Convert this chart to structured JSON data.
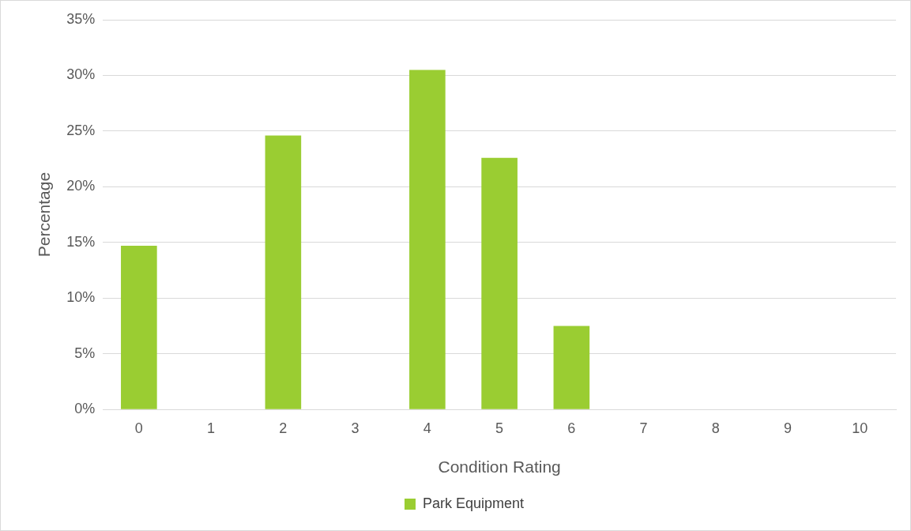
{
  "chart_data": {
    "type": "bar",
    "xlabel": "Condition Rating",
    "ylabel": "Percentage",
    "categories": [
      "0",
      "1",
      "2",
      "3",
      "4",
      "5",
      "6",
      "7",
      "8",
      "9",
      "10"
    ],
    "series": [
      {
        "name": "Park Equipment",
        "color": "#9acd32",
        "values": [
          14.7,
          0,
          24.6,
          0,
          30.5,
          22.6,
          7.5,
          0,
          0,
          0,
          0
        ]
      }
    ],
    "ylim": [
      0,
      35
    ],
    "yticks": [
      {
        "value": 0,
        "label": "0%"
      },
      {
        "value": 5,
        "label": "5%"
      },
      {
        "value": 10,
        "label": "10%"
      },
      {
        "value": 15,
        "label": "15%"
      },
      {
        "value": 20,
        "label": "20%"
      },
      {
        "value": 25,
        "label": "25%"
      },
      {
        "value": 30,
        "label": "30%"
      },
      {
        "value": 35,
        "label": "35%"
      }
    ],
    "grid": "y",
    "legend": "bottom"
  }
}
